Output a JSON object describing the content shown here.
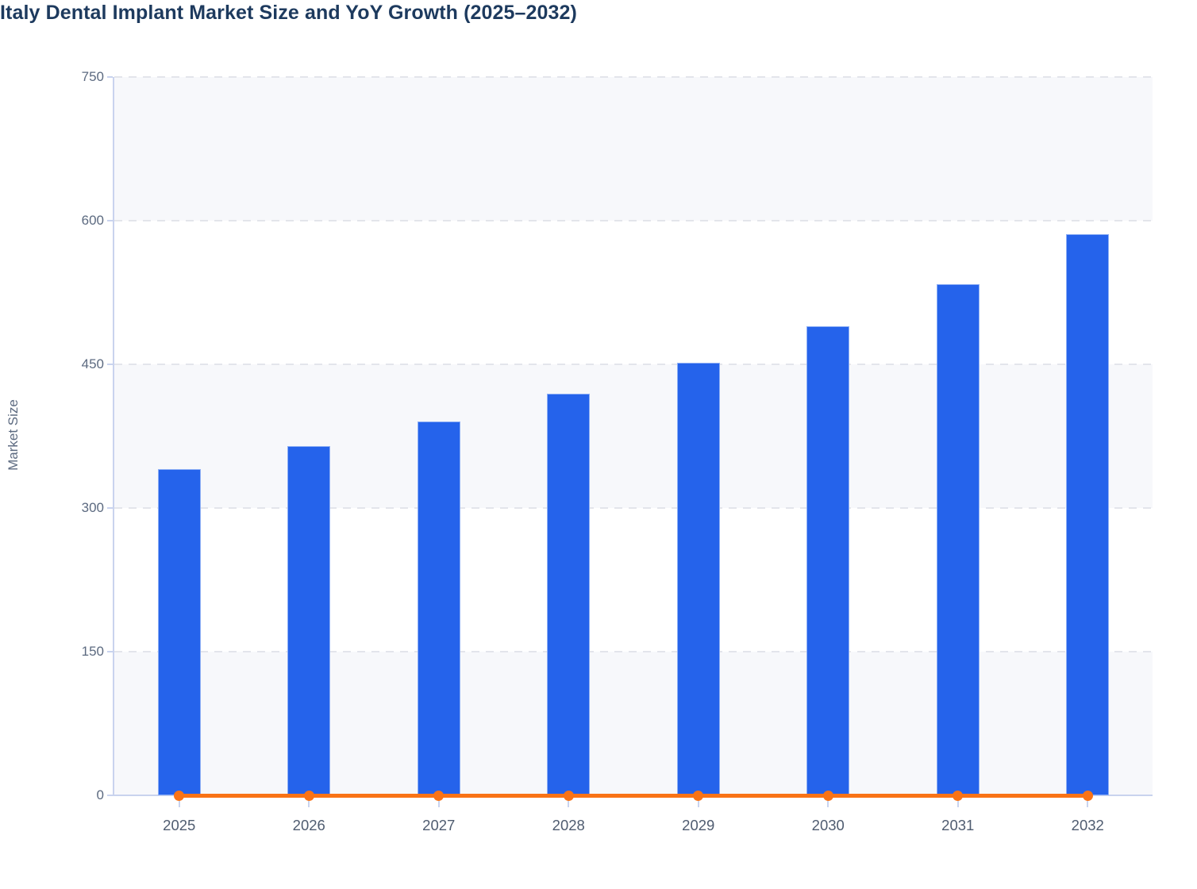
{
  "chart_data": {
    "type": "bar",
    "combo": "bar + line",
    "title": "Italy Dental Implant Market Size and YoY Growth (2025–2032)",
    "xlabel": "",
    "ylabel": "Market Size",
    "categories": [
      "2025",
      "2026",
      "2027",
      "2028",
      "2029",
      "2030",
      "2031",
      "2032"
    ],
    "y_axis": {
      "min": 0,
      "max": 750,
      "ticks": [
        0,
        150,
        300,
        450,
        600,
        750
      ]
    },
    "series": [
      {
        "name": "Market Size",
        "type": "bar",
        "values": [
          341,
          365,
          390,
          419,
          452,
          490,
          534,
          586
        ]
      },
      {
        "name": "YoY Growth",
        "type": "line",
        "values_as_plotted": [
          0,
          0,
          0,
          0,
          0,
          0,
          0,
          0
        ],
        "note": "line with circular markers drawn flat along the zero baseline; no growth values labeled in the image"
      }
    ],
    "legend": "none",
    "grid": "horizontal dashed gridlines with alternating horizontal background bands"
  },
  "style": {
    "bar_fill": "#2563eb",
    "bar_border": "#8fb0f5",
    "line_color": "#f97316",
    "band_fill": "#f7f8fb",
    "gridline_color": "#e3e5eb",
    "axis_color": "#c9d3ee",
    "title_color": "#1d3a5e",
    "y_label_color": "#5c6a80",
    "x_label_color": "#4f5c70",
    "background": "#ffffff"
  }
}
